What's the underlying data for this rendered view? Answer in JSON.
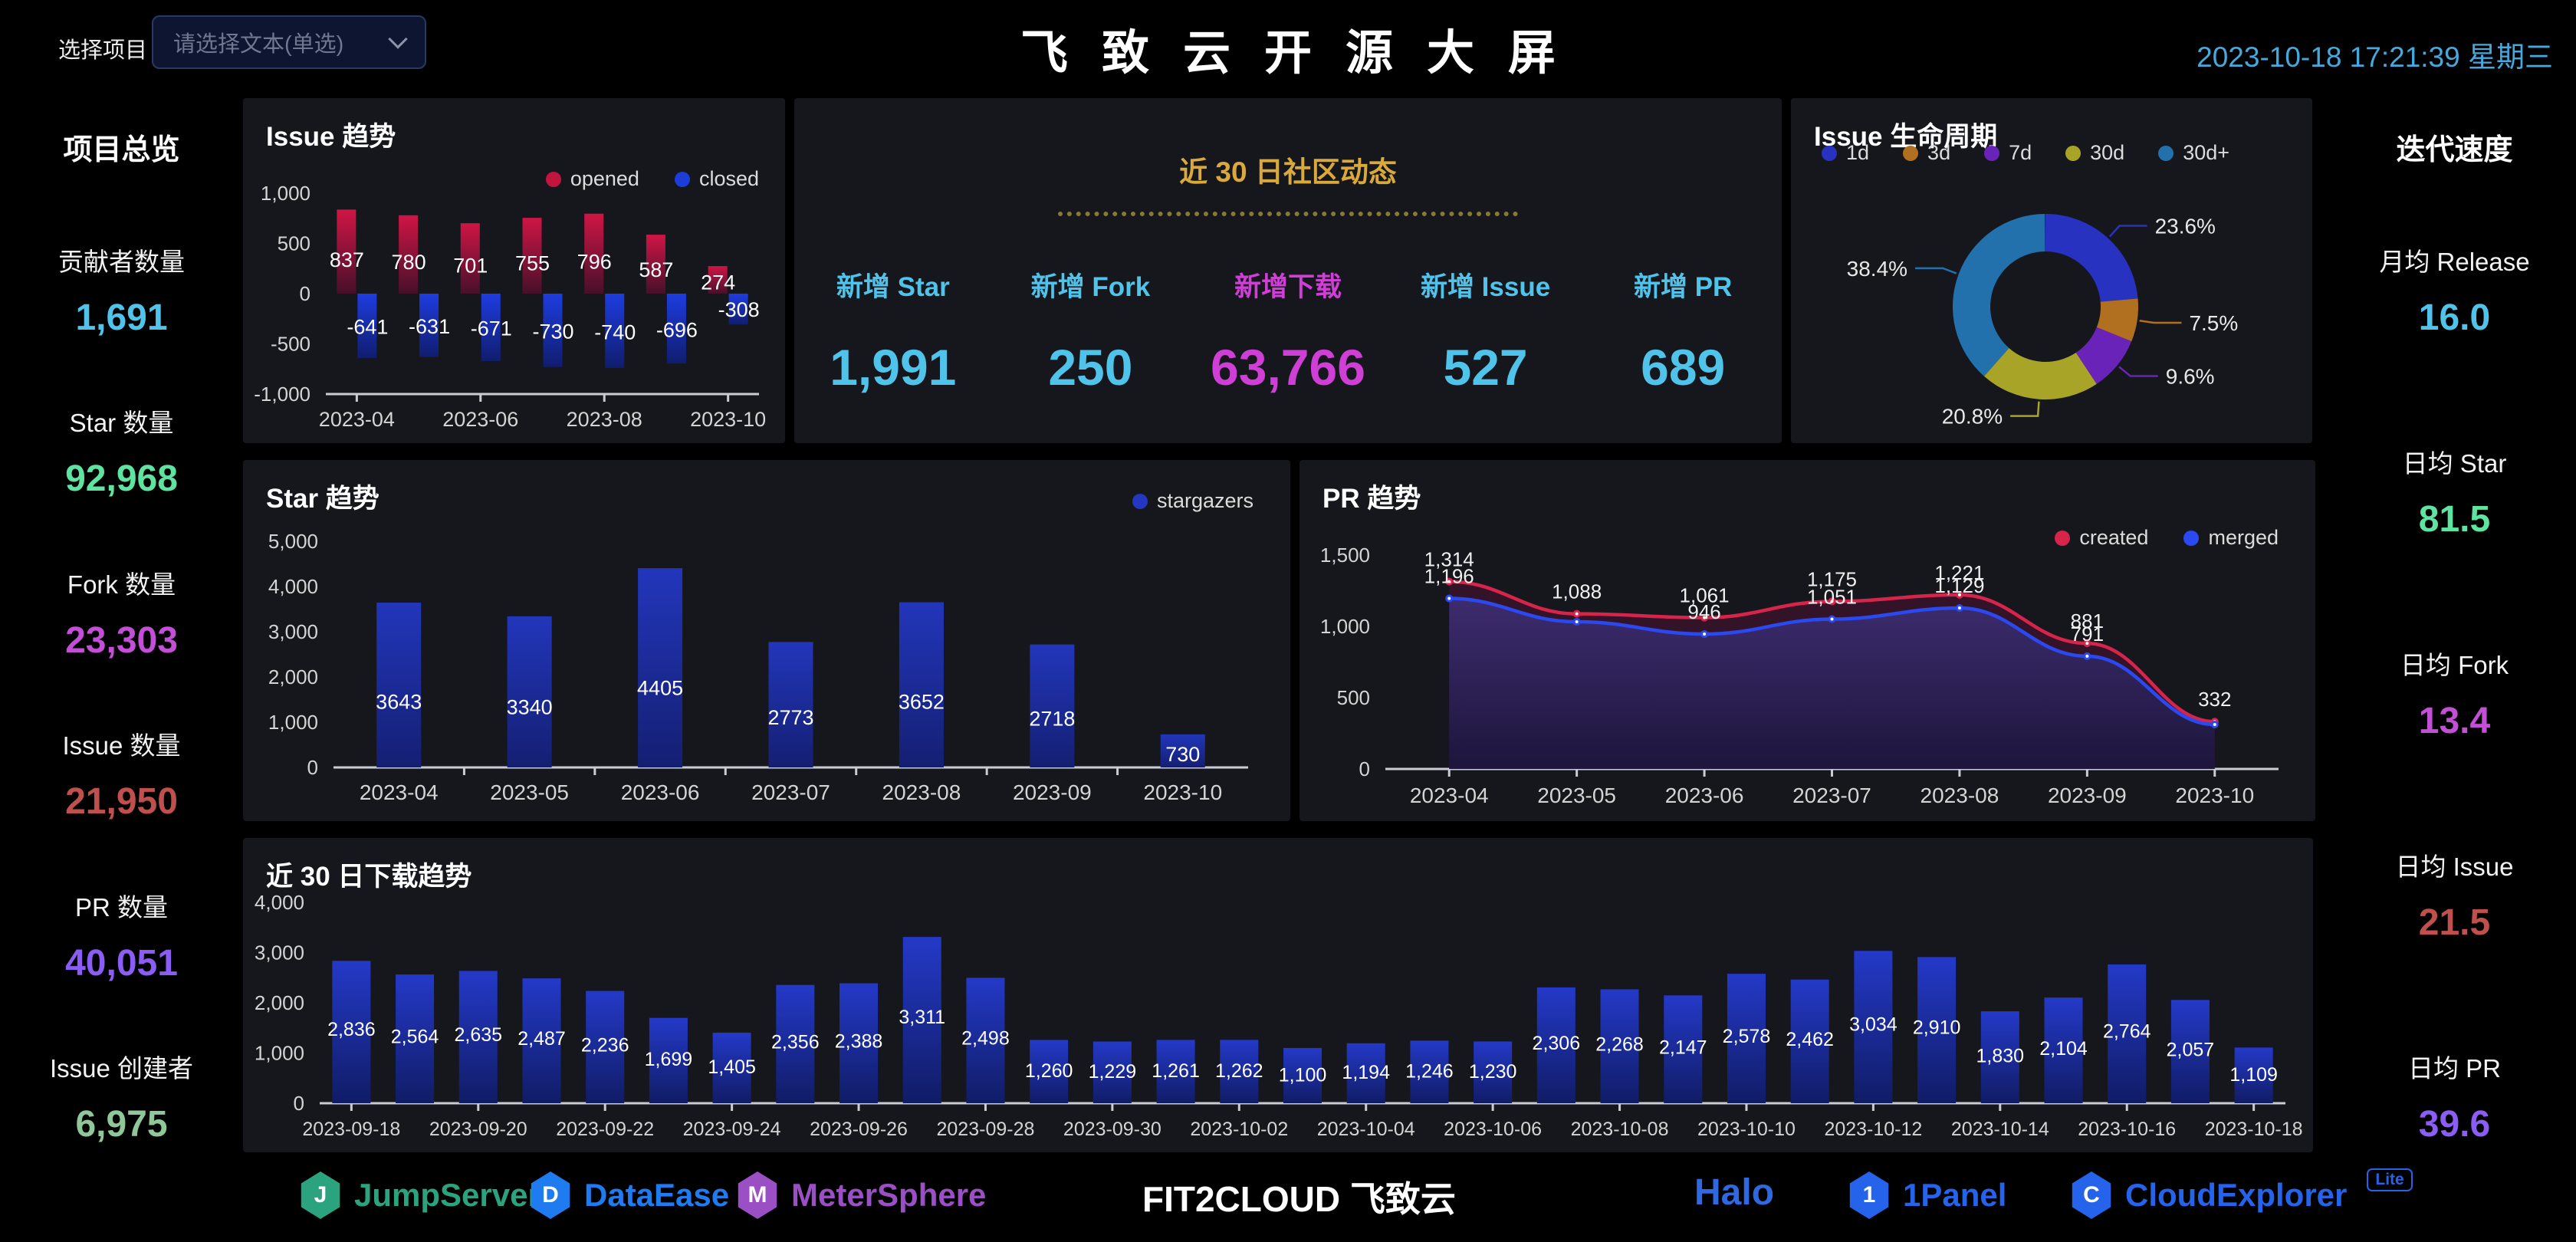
{
  "header": {
    "project_select_label": "选择项目",
    "project_select_placeholder": "请选择文本(单选)",
    "title": "飞致云开源大屏",
    "datetime": "2023-10-18 17:21:39 星期三"
  },
  "left_panel": {
    "title": "项目总览",
    "stats": [
      {
        "label": "贡献者数量",
        "value": "1,691",
        "color": "#4fc3ea"
      },
      {
        "label": "Star 数量",
        "value": "92,968",
        "color": "#5fe3a1"
      },
      {
        "label": "Fork 数量",
        "value": "23,303",
        "color": "#c24fd6"
      },
      {
        "label": "Issue 数量",
        "value": "21,950",
        "color": "#c0504d"
      },
      {
        "label": "PR 数量",
        "value": "40,051",
        "color": "#8b5cf6"
      },
      {
        "label": "Issue 创建者",
        "value": "6,975",
        "color": "#90c798"
      }
    ]
  },
  "right_panel": {
    "title": "迭代速度",
    "stats": [
      {
        "label": "月均 Release",
        "value": "16.0",
        "color": "#4fc3ea"
      },
      {
        "label": "日均 Star",
        "value": "81.5",
        "color": "#5fe3a1"
      },
      {
        "label": "日均 Fork",
        "value": "13.4",
        "color": "#c24fd6"
      },
      {
        "label": "日均 Issue",
        "value": "21.5",
        "color": "#c0504d"
      },
      {
        "label": "日均 PR",
        "value": "39.6",
        "color": "#8b5cf6"
      }
    ]
  },
  "community": {
    "title": "近 30 日社区动态",
    "stats": [
      {
        "label": "新增 Star",
        "value": "1,991",
        "color": "#4fc3ea"
      },
      {
        "label": "新增 Fork",
        "value": "250",
        "color": "#4fc3ea"
      },
      {
        "label": "新增下载",
        "value": "63,766",
        "color": "#cf3fd6"
      },
      {
        "label": "新增 Issue",
        "value": "527",
        "color": "#4fc3ea"
      },
      {
        "label": "新增 PR",
        "value": "689",
        "color": "#4fc3ea"
      }
    ]
  },
  "chart_data": [
    {
      "id": "issue_trend",
      "type": "bar",
      "title": "Issue 趋势",
      "legend": [
        {
          "name": "opened",
          "color": "#c11540"
        },
        {
          "name": "closed",
          "color": "#1e3cd8"
        }
      ],
      "categories": [
        "2023-04",
        "2023-05",
        "2023-06",
        "2023-07",
        "2023-08",
        "2023-09",
        "2023-10"
      ],
      "x_tick_labels": [
        "2023-04",
        "2023-06",
        "2023-08",
        "2023-10"
      ],
      "series": [
        {
          "name": "opened",
          "values": [
            837,
            780,
            701,
            755,
            796,
            587,
            274
          ],
          "labels": [
            "837",
            "780",
            "701",
            "755",
            "796",
            "587",
            "274"
          ]
        },
        {
          "name": "closed",
          "values": [
            -641,
            -631,
            -671,
            -730,
            -740,
            -696,
            -308
          ],
          "labels": [
            "-641",
            "-631",
            "-671",
            "-730",
            "-740",
            "-696",
            "-308"
          ]
        }
      ],
      "ylim": [
        -1000,
        1000
      ],
      "yticks": [
        1000,
        500,
        0,
        -500,
        -1000
      ],
      "grid": false,
      "legend_position": "top-right"
    },
    {
      "id": "lifecycle",
      "type": "pie",
      "title": "Issue 生命周期",
      "legend_position": "top",
      "slices": [
        {
          "name": "1d",
          "pct": 23.6,
          "label": "23.6%",
          "color": "#2832c0"
        },
        {
          "name": "3d",
          "pct": 7.5,
          "label": "7.5%",
          "color": "#b0701f"
        },
        {
          "name": "7d",
          "pct": 9.6,
          "label": "9.6%",
          "color": "#6a23b8"
        },
        {
          "name": "30d",
          "pct": 20.8,
          "label": "20.8%",
          "color": "#a8a428"
        },
        {
          "name": "30d+",
          "pct": 38.4,
          "label": "38.4%",
          "color": "#2271ad"
        }
      ]
    },
    {
      "id": "star_trend",
      "type": "bar",
      "title": "Star 趋势",
      "legend": [
        {
          "name": "stargazers",
          "color": "#2337c0"
        }
      ],
      "categories": [
        "2023-04",
        "2023-05",
        "2023-06",
        "2023-07",
        "2023-08",
        "2023-09",
        "2023-10"
      ],
      "values": [
        3643,
        3340,
        4405,
        2773,
        3652,
        2718,
        730
      ],
      "labels": [
        "3643",
        "3340",
        "4405",
        "2773",
        "3652",
        "2718",
        "730"
      ],
      "ylim": [
        0,
        5000
      ],
      "yticks": [
        5000,
        4000,
        3000,
        2000,
        1000,
        0
      ],
      "grid": false,
      "legend_position": "top-right"
    },
    {
      "id": "pr_trend",
      "type": "line",
      "title": "PR 趋势",
      "legend": [
        {
          "name": "created",
          "color": "#d6244a"
        },
        {
          "name": "merged",
          "color": "#2b49f0"
        }
      ],
      "categories": [
        "2023-04",
        "2023-05",
        "2023-06",
        "2023-07",
        "2023-08",
        "2023-09",
        "2023-10"
      ],
      "series": [
        {
          "name": "created",
          "values": [
            1314,
            1088,
            1061,
            1175,
            1221,
            881,
            332
          ],
          "labels": [
            "1,314",
            "1,088",
            "1,061",
            "1,175",
            "1,221",
            "881",
            "332"
          ]
        },
        {
          "name": "merged",
          "values": [
            1196,
            1032,
            946,
            1051,
            1129,
            791,
            312
          ],
          "labels": [
            "1,196",
            "",
            "946",
            "1,051",
            "1,129",
            "791",
            ""
          ]
        }
      ],
      "ylim": [
        0,
        1500
      ],
      "yticks": [
        1500,
        1000,
        500,
        0
      ],
      "grid": false,
      "legend_position": "top-right",
      "area_fill": true,
      "smooth": true
    },
    {
      "id": "downloads",
      "type": "bar",
      "title": "近 30 日下载趋势",
      "categories": [
        "2023-09-18",
        "2023-09-19",
        "2023-09-20",
        "2023-09-21",
        "2023-09-22",
        "2023-09-23",
        "2023-09-24",
        "2023-09-25",
        "2023-09-26",
        "2023-09-27",
        "2023-09-28",
        "2023-09-29",
        "2023-09-30",
        "2023-10-01",
        "2023-10-02",
        "2023-10-03",
        "2023-10-04",
        "2023-10-05",
        "2023-10-06",
        "2023-10-07",
        "2023-10-08",
        "2023-10-09",
        "2023-10-10",
        "2023-10-11",
        "2023-10-12",
        "2023-10-13",
        "2023-10-14",
        "2023-10-15",
        "2023-10-16",
        "2023-10-17",
        "2023-10-18"
      ],
      "values": [
        2836,
        2564,
        2635,
        2487,
        2236,
        1699,
        1405,
        2356,
        2388,
        3311,
        2498,
        1260,
        1229,
        1261,
        1262,
        1100,
        1194,
        1246,
        1230,
        2306,
        2268,
        2147,
        2578,
        2462,
        3034,
        2910,
        1830,
        2104,
        2764,
        2057,
        1109
      ],
      "labels": [
        "2,836",
        "2,564",
        "2,635",
        "2,487",
        "2,236",
        "1,699",
        "1,405",
        "2,356",
        "2,388",
        "3,311",
        "2,498",
        "1,260",
        "1,229",
        "1,261",
        "1,262",
        "1,100",
        "1,194",
        "1,246",
        "1,230",
        "2,306",
        "2,268",
        "2,147",
        "2,578",
        "2,462",
        "3,034",
        "2,910",
        "1,830",
        "2,104",
        "2,764",
        "2,057",
        "1,109"
      ],
      "x_tick_labels": [
        "2023-09-18",
        "2023-09-20",
        "2023-09-22",
        "2023-09-24",
        "2023-09-26",
        "2023-09-28",
        "2023-09-30",
        "2023-10-02",
        "2023-10-04",
        "2023-10-06",
        "2023-10-08",
        "2023-10-10",
        "2023-10-12",
        "2023-10-14",
        "2023-10-16",
        "2023-10-18"
      ],
      "ylim": [
        0,
        4000
      ],
      "yticks": [
        4000,
        3000,
        2000,
        1000,
        0
      ],
      "grid": false
    }
  ],
  "footer": {
    "brands": [
      {
        "name": "JumpServer",
        "color": "#2ba37f",
        "icon_letter": "J"
      },
      {
        "name": "DataEase",
        "color": "#1f7bf0",
        "icon_letter": "D"
      },
      {
        "name": "MeterSphere",
        "color": "#9a4fc4",
        "icon_letter": "M"
      },
      {
        "name": "FIT2CLOUD 飞致云",
        "color": "#ffffff"
      },
      {
        "name": "Halo",
        "color": "#2f68e0"
      },
      {
        "name": "1Panel",
        "color": "#2563eb",
        "icon_letter": "1"
      },
      {
        "name": "CloudExplorer",
        "color": "#2563eb",
        "icon_letter": "C",
        "badge": "Lite"
      }
    ]
  }
}
